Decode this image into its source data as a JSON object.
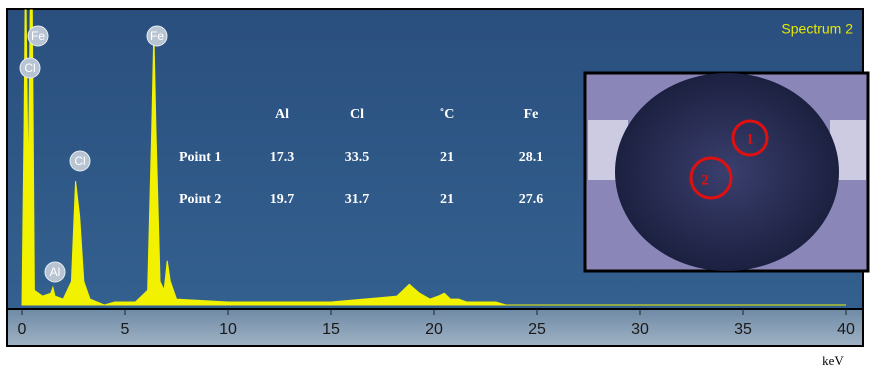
{
  "chart_data": {
    "type": "area",
    "title": "Spectrum 2",
    "xlabel": "keV",
    "color": "#f2f200",
    "x": [
      0,
      0.1,
      0.15,
      0.2,
      0.3,
      0.4,
      0.5,
      0.6,
      1.0,
      1.4,
      1.5,
      1.6,
      2.0,
      2.4,
      2.6,
      2.8,
      3.0,
      3.3,
      4.0,
      4.5,
      5.5,
      6.1,
      6.3,
      6.4,
      6.5,
      6.7,
      6.9,
      7.05,
      7.2,
      7.5,
      10,
      15,
      18.2,
      18.8,
      19.3,
      19.8,
      20.2,
      20.5,
      20.8,
      21.2,
      21.6,
      23,
      23.5,
      40
    ],
    "values": [
      0,
      60,
      100,
      100,
      40,
      100,
      100,
      5,
      3,
      4,
      6,
      3,
      2,
      8,
      42,
      30,
      8,
      2,
      0,
      1,
      1,
      5,
      60,
      93,
      60,
      8,
      5,
      15,
      8,
      2,
      1,
      1,
      3,
      7,
      4,
      2,
      3,
      4,
      2,
      2,
      1,
      1,
      0,
      0
    ],
    "xlim": [
      0,
      40
    ],
    "ylim": [
      0,
      100
    ],
    "xticks": [
      0,
      5,
      10,
      15,
      20,
      25,
      30,
      35,
      40
    ],
    "peak_labels": [
      "Fe",
      "Cl",
      "Cl",
      "Al",
      "Fe"
    ],
    "table": {
      "columns": [
        "Al",
        "Cl",
        "˚C",
        "Fe"
      ],
      "rows": [
        {
          "label": "Point 1",
          "values": [
            17.3,
            33.5,
            21,
            28.1
          ]
        },
        {
          "label": "Point 2",
          "values": [
            19.7,
            31.7,
            21,
            27.6
          ]
        }
      ]
    },
    "image_markers": [
      "1",
      "2"
    ]
  }
}
